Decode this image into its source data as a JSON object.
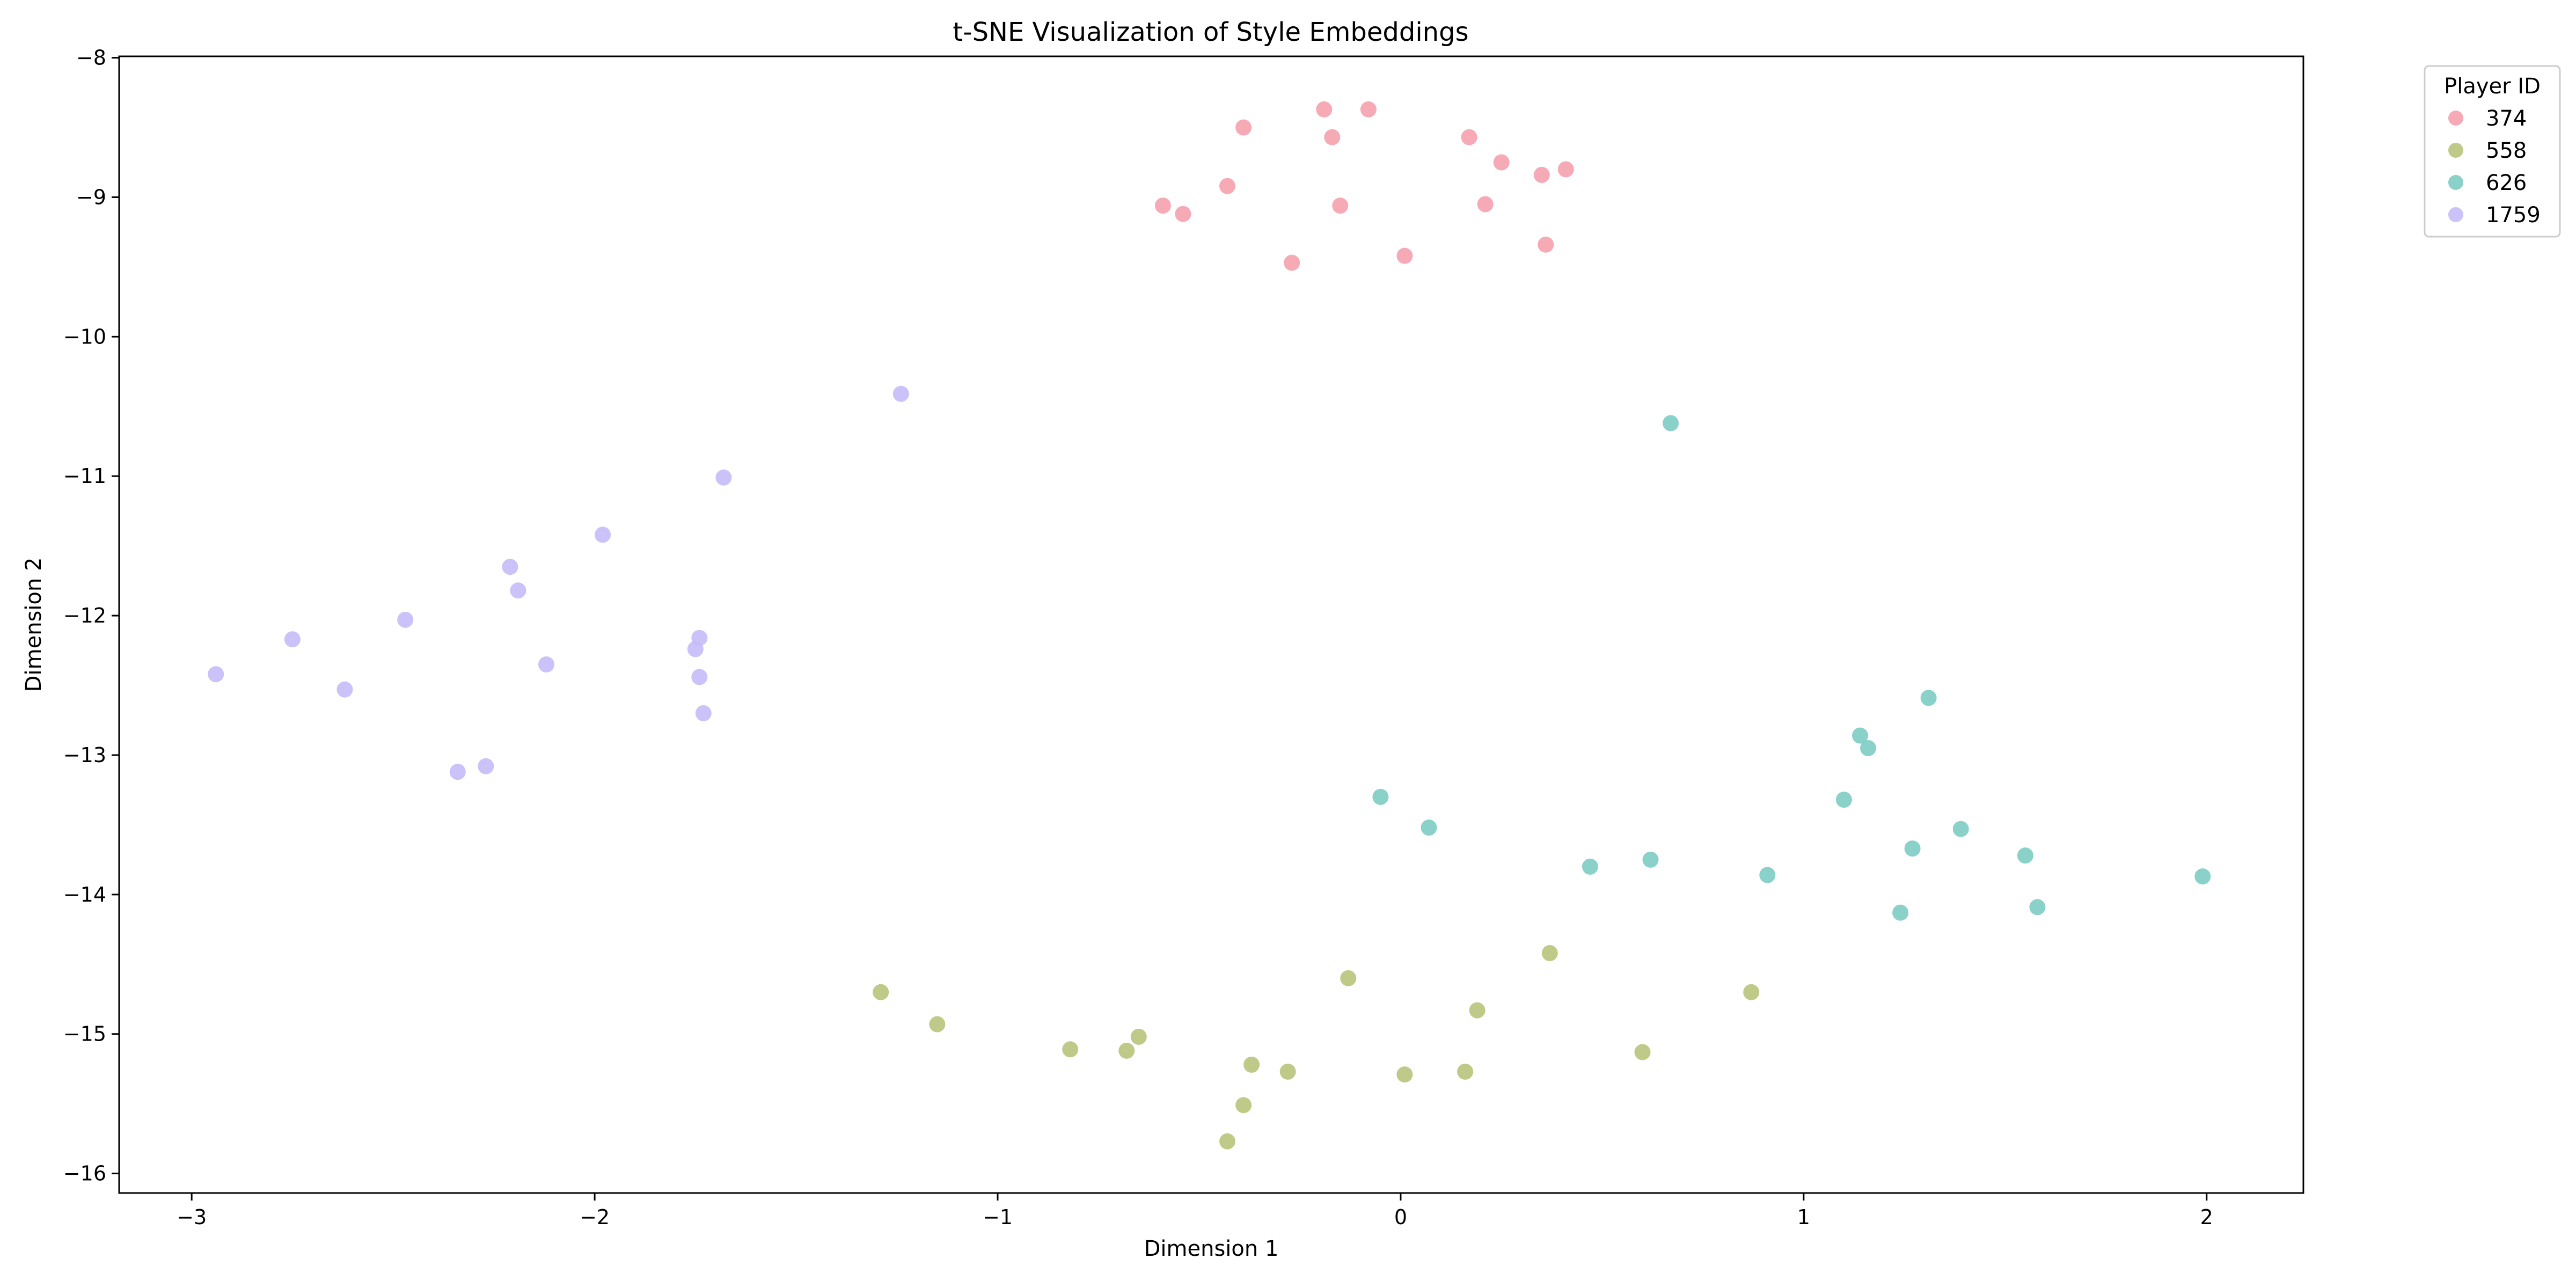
{
  "chart_data": {
    "type": "scatter",
    "title": "t-SNE Visualization of Style Embeddings",
    "xlabel": "Dimension 1",
    "ylabel": "Dimension 2",
    "xlim": [
      -3.18,
      2.24
    ],
    "ylim": [
      -16.14,
      -7.99
    ],
    "xticks": [
      -3,
      -2,
      -1,
      0,
      1,
      2
    ],
    "yticks": [
      -16,
      -15,
      -14,
      -13,
      -12,
      -11,
      -10,
      -9,
      -8
    ],
    "grid": false,
    "legend": {
      "title": "Player ID",
      "placement": "upper-right-outside"
    },
    "series": [
      {
        "name": "374",
        "color": "#f4a3b0",
        "points": [
          [
            -0.19,
            -8.37
          ],
          [
            -0.08,
            -8.37
          ],
          [
            -0.39,
            -8.5
          ],
          [
            -0.17,
            -8.57
          ],
          [
            0.17,
            -8.57
          ],
          [
            0.25,
            -8.75
          ],
          [
            0.41,
            -8.8
          ],
          [
            0.35,
            -8.84
          ],
          [
            -0.43,
            -8.92
          ],
          [
            -0.59,
            -9.06
          ],
          [
            -0.54,
            -9.12
          ],
          [
            -0.15,
            -9.06
          ],
          [
            0.21,
            -9.05
          ],
          [
            0.36,
            -9.34
          ],
          [
            0.01,
            -9.42
          ],
          [
            -0.27,
            -9.47
          ]
        ]
      },
      {
        "name": "558",
        "color": "#bac57e",
        "points": [
          [
            -1.29,
            -14.7
          ],
          [
            -1.15,
            -14.93
          ],
          [
            -0.82,
            -15.11
          ],
          [
            -0.68,
            -15.12
          ],
          [
            -0.65,
            -15.02
          ],
          [
            -0.37,
            -15.22
          ],
          [
            -0.28,
            -15.27
          ],
          [
            -0.39,
            -15.51
          ],
          [
            -0.43,
            -15.77
          ],
          [
            -0.13,
            -14.6
          ],
          [
            0.01,
            -15.29
          ],
          [
            0.16,
            -15.27
          ],
          [
            0.19,
            -14.83
          ],
          [
            0.37,
            -14.42
          ],
          [
            0.6,
            -15.13
          ],
          [
            0.87,
            -14.7
          ]
        ]
      },
      {
        "name": "626",
        "color": "#7fcdc4",
        "points": [
          [
            0.67,
            -10.62
          ],
          [
            -0.05,
            -13.3
          ],
          [
            0.07,
            -13.52
          ],
          [
            0.47,
            -13.8
          ],
          [
            0.62,
            -13.75
          ],
          [
            0.91,
            -13.86
          ],
          [
            1.1,
            -13.32
          ],
          [
            1.14,
            -12.86
          ],
          [
            1.16,
            -12.95
          ],
          [
            1.27,
            -13.67
          ],
          [
            1.31,
            -12.59
          ],
          [
            1.39,
            -13.53
          ],
          [
            1.55,
            -13.72
          ],
          [
            1.24,
            -14.13
          ],
          [
            1.58,
            -14.09
          ],
          [
            1.99,
            -13.87
          ]
        ]
      },
      {
        "name": "1759",
        "color": "#c6bdf7",
        "points": [
          [
            -1.24,
            -10.41
          ],
          [
            -1.68,
            -11.01
          ],
          [
            -1.98,
            -11.42
          ],
          [
            -2.21,
            -11.65
          ],
          [
            -2.19,
            -11.82
          ],
          [
            -2.47,
            -12.03
          ],
          [
            -2.75,
            -12.17
          ],
          [
            -2.94,
            -12.42
          ],
          [
            -2.62,
            -12.53
          ],
          [
            -2.12,
            -12.35
          ],
          [
            -1.74,
            -12.16
          ],
          [
            -1.75,
            -12.24
          ],
          [
            -1.74,
            -12.44
          ],
          [
            -1.73,
            -12.7
          ],
          [
            -2.27,
            -13.08
          ],
          [
            -2.34,
            -13.12
          ]
        ]
      }
    ]
  }
}
